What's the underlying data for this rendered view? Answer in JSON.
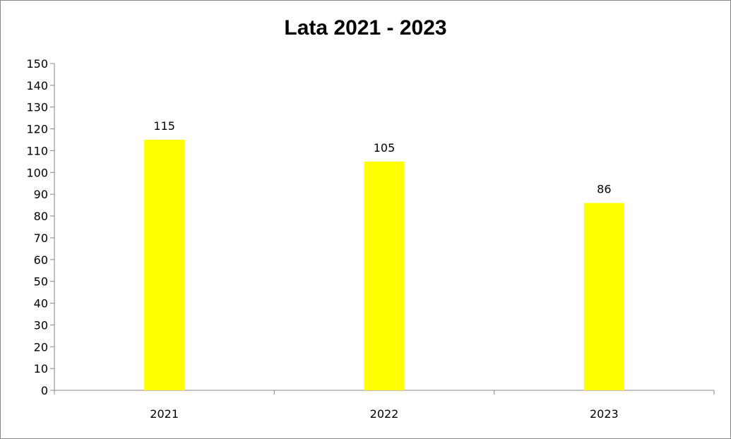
{
  "chart_data": {
    "type": "bar",
    "title": "Lata 2021 - 2023",
    "categories": [
      "2021",
      "2022",
      "2023"
    ],
    "values": [
      115,
      105,
      86
    ],
    "data_labels": [
      "115",
      "105",
      "86"
    ],
    "ylim": [
      0,
      150
    ],
    "ytick_step": 10,
    "ytick_labels": [
      "0",
      "10",
      "20",
      "30",
      "40",
      "50",
      "60",
      "70",
      "80",
      "90",
      "100",
      "110",
      "120",
      "130",
      "140",
      "150"
    ],
    "grid": false,
    "legend": "none",
    "bar_color": "#ffff00",
    "axis_color": "#868686"
  }
}
